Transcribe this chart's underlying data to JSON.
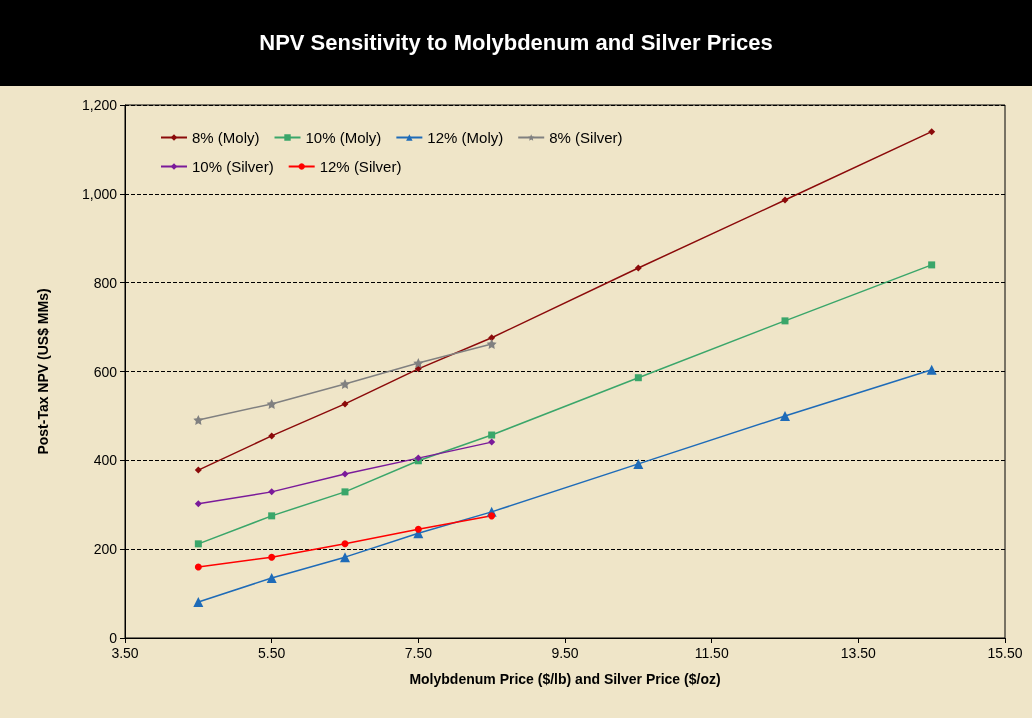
{
  "chart_data": {
    "type": "line",
    "title": "NPV Sensitivity to Molybdenum and Silver Prices",
    "xlabel": "Molybdenum Price ($/lb) and Silver Price ($/oz)",
    "ylabel": "Post-Tax NPV (US$ MMs)",
    "x": [
      4.5,
      5.5,
      6.5,
      7.5,
      8.5,
      10.5,
      12.5,
      14.5
    ],
    "series": [
      {
        "name": "8% (Moly)",
        "color": "#8b0a0a",
        "marker": "diamond",
        "values": [
          378,
          455,
          527,
          606,
          676,
          833,
          986,
          1140
        ]
      },
      {
        "name": "10% (Moly)",
        "color": "#3aa66a",
        "marker": "square",
        "values": [
          212,
          275,
          329,
          399,
          457,
          586,
          714,
          840
        ]
      },
      {
        "name": "12% (Moly)",
        "color": "#1e6bb8",
        "marker": "triangle",
        "values": [
          81,
          135,
          182,
          236,
          284,
          392,
          500,
          604
        ]
      },
      {
        "name": "8% (Silver)",
        "color": "#808080",
        "marker": "star",
        "x": [
          4.5,
          5.5,
          6.5,
          7.5,
          8.5
        ],
        "values": [
          491,
          527,
          572,
          619,
          662
        ]
      },
      {
        "name": "10% (Silver)",
        "color": "#7a1a9a",
        "marker": "diamond",
        "x": [
          4.5,
          5.5,
          6.5,
          7.5,
          8.5
        ],
        "values": [
          302,
          329,
          369,
          405,
          441
        ]
      },
      {
        "name": "12% (Silver)",
        "color": "#ff0000",
        "marker": "circle",
        "x": [
          4.5,
          5.5,
          6.5,
          7.5,
          8.5
        ],
        "values": [
          160,
          182,
          212,
          245,
          275
        ]
      }
    ],
    "xlim": [
      3.5,
      15.5
    ],
    "xticks": [
      {
        "value": 3.5,
        "label": "3.50"
      },
      {
        "value": 5.5,
        "label": "5.50"
      },
      {
        "value": 7.5,
        "label": "7.50"
      },
      {
        "value": 9.5,
        "label": "9.50"
      },
      {
        "value": 11.5,
        "label": "11.50"
      },
      {
        "value": 13.5,
        "label": "13.50"
      },
      {
        "value": 15.5,
        "label": "15.50"
      }
    ],
    "ylim": [
      0,
      1200
    ],
    "yticks": [
      {
        "value": 0,
        "label": "0"
      },
      {
        "value": 200,
        "label": "200"
      },
      {
        "value": 400,
        "label": "400"
      },
      {
        "value": 600,
        "label": "600"
      },
      {
        "value": 800,
        "label": "800"
      },
      {
        "value": 1000,
        "label": "1,000"
      },
      {
        "value": 1200,
        "label": "1,200"
      }
    ],
    "grid": "y",
    "legend": "top left",
    "line_style": "solid"
  }
}
